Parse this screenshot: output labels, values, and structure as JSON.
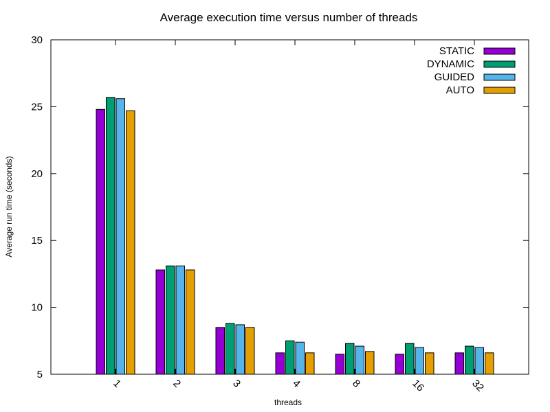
{
  "chart_data": {
    "type": "bar",
    "title": "Average execution time versus number of threads",
    "xlabel": "threads",
    "ylabel": "Average run time (seconds)",
    "ylim": [
      5,
      30
    ],
    "yticks": [
      5,
      10,
      15,
      20,
      25,
      30
    ],
    "categories": [
      "1",
      "2",
      "3",
      "4",
      "8",
      "16",
      "32"
    ],
    "legend_position": "top-right",
    "grid": false,
    "series": [
      {
        "name": "STATIC",
        "color": "#9400d3",
        "values": [
          24.8,
          12.8,
          8.5,
          6.6,
          6.5,
          6.5,
          6.6
        ]
      },
      {
        "name": "DYNAMIC",
        "color": "#009e73",
        "values": [
          25.7,
          13.1,
          8.8,
          7.5,
          7.3,
          7.3,
          7.1
        ]
      },
      {
        "name": "GUIDED",
        "color": "#56b4e9",
        "values": [
          25.6,
          13.1,
          8.7,
          7.4,
          7.1,
          7.0,
          7.0
        ]
      },
      {
        "name": "AUTO",
        "color": "#e69f00",
        "values": [
          24.7,
          12.8,
          8.5,
          6.6,
          6.7,
          6.6,
          6.6
        ]
      }
    ]
  }
}
